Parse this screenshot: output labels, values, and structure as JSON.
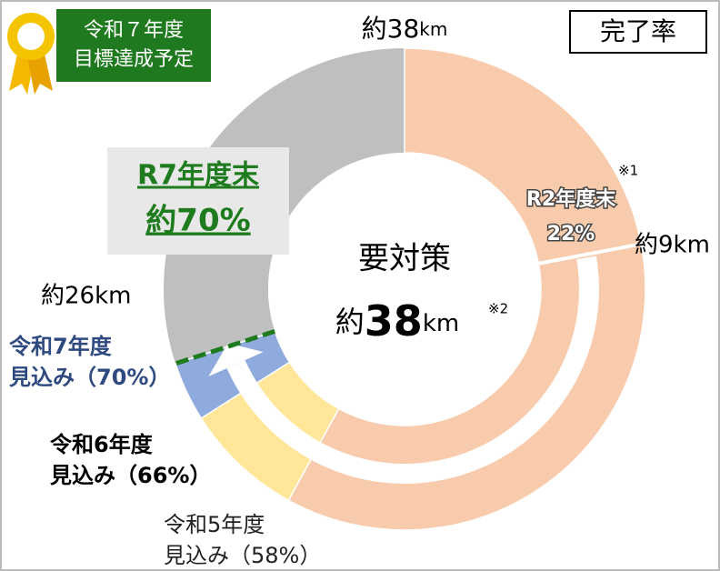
{
  "badge": {
    "lines": [
      "令和７年度",
      "目標達成予定"
    ]
  },
  "legend_box": "完了率",
  "chart_data": {
    "type": "donut",
    "range": [
      0,
      100
    ],
    "top_label": {
      "prefix": "約",
      "number": "38",
      "unit": "km"
    },
    "center": {
      "title": "要対策",
      "prefix": "約",
      "number": "38",
      "unit": "km",
      "note": "※2"
    },
    "milestones": [
      {
        "name": "R2年度末",
        "value": 22,
        "value_label": "22%",
        "color": "#f8cbad",
        "note": "※1"
      },
      {
        "name": "令和5年度",
        "value": 58,
        "value_label": "見込み（58%）",
        "color": "#f8cbad"
      },
      {
        "name": "令和6年度",
        "value": 66,
        "value_label": "見込み（66%）",
        "color": "#ffe699"
      },
      {
        "name": "令和7年度",
        "value": 70,
        "value_label": "見込み（70%）",
        "color": "#8faadc"
      }
    ],
    "remaining_color": "#bfbfbf",
    "target": {
      "name": "R7年度末",
      "value": 70,
      "value_label": "約70%",
      "color": "#1e7b1e"
    },
    "distance_labels": [
      "約9km",
      "約26km"
    ]
  }
}
